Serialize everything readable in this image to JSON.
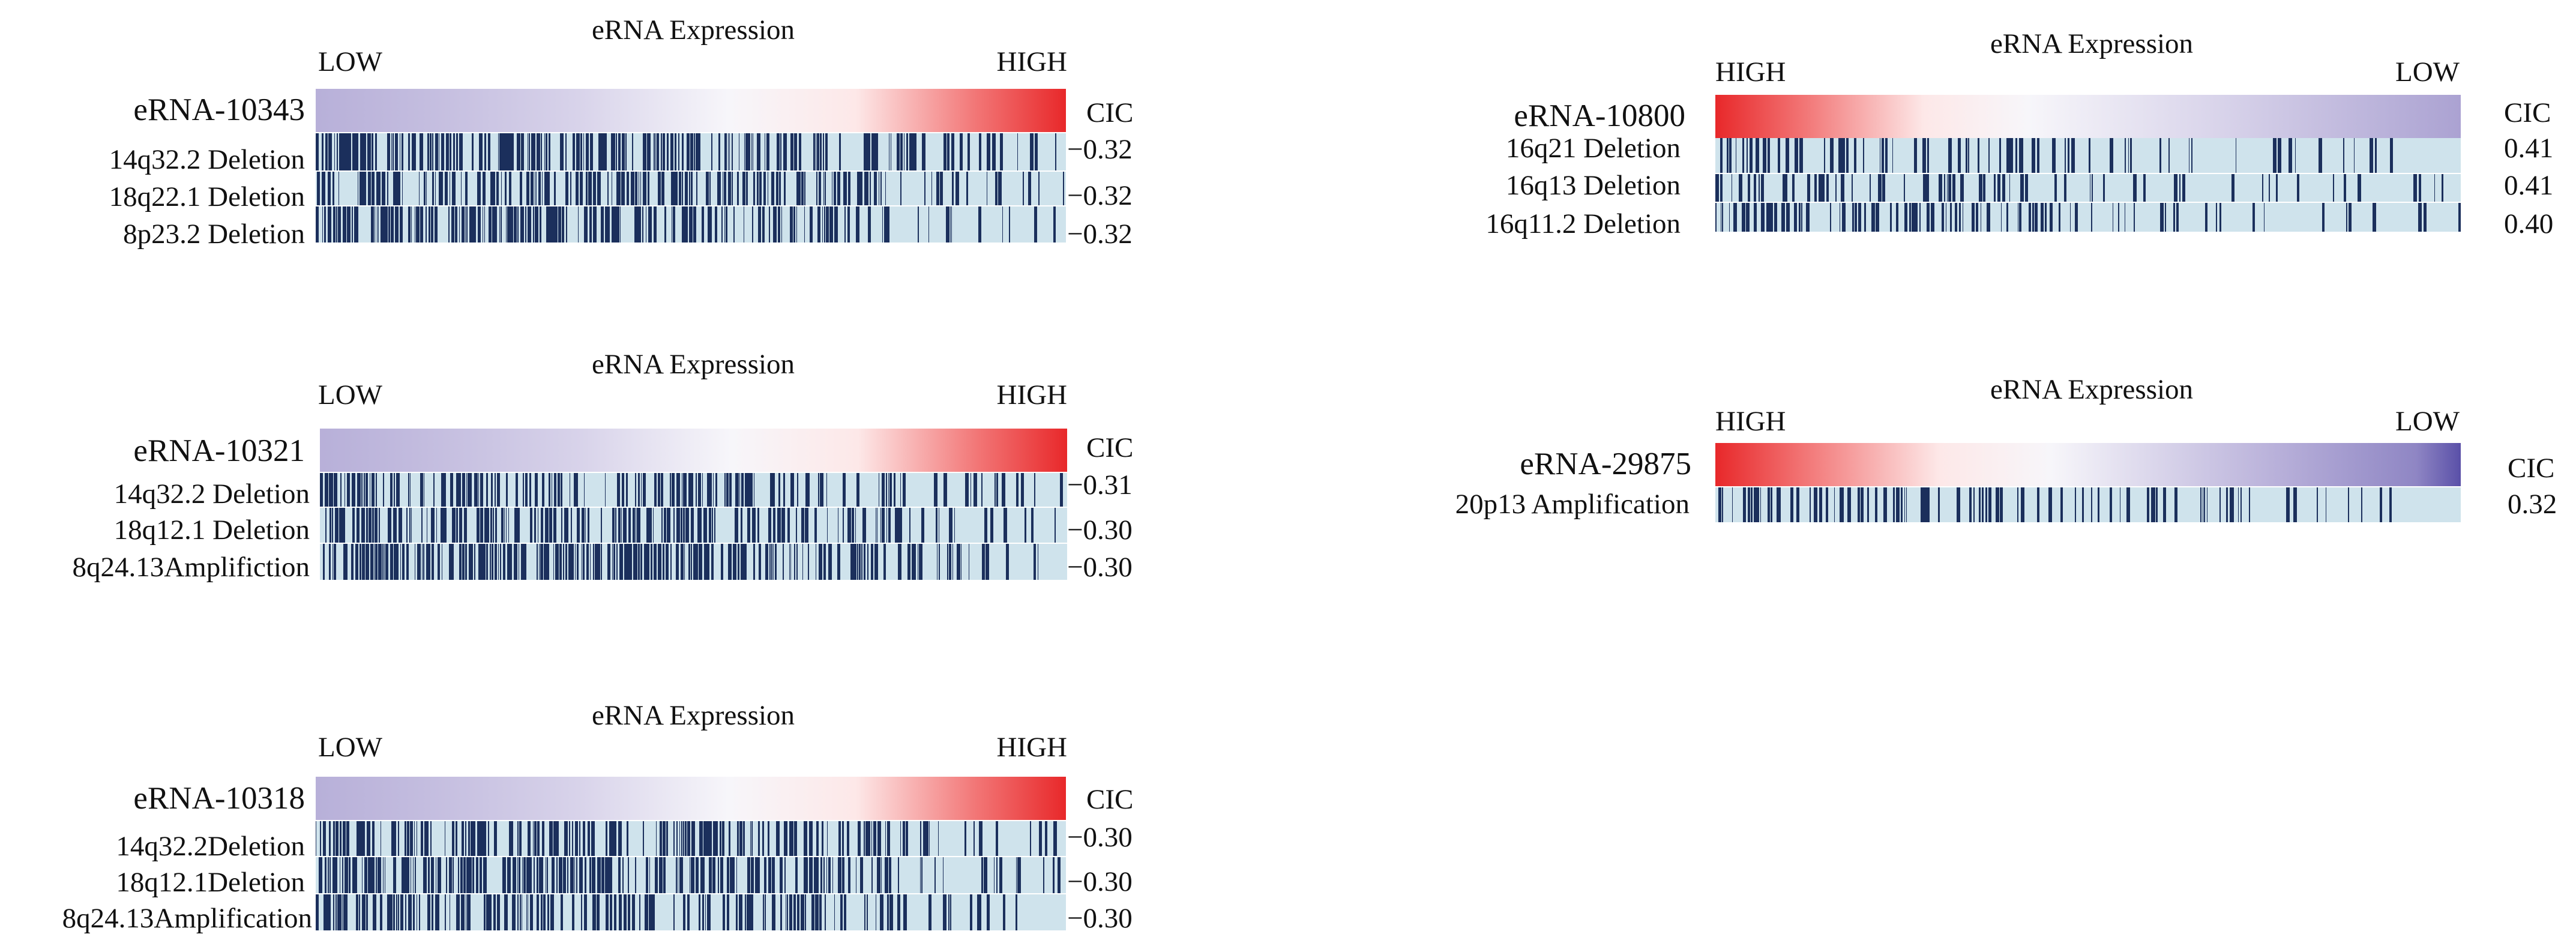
{
  "chart_data": [
    {
      "type": "heatmap",
      "title": "eRNA Expression",
      "low_label": "LOW",
      "high_label": "HIGH",
      "direction": "low-to-high",
      "erna": "eRNA-10343",
      "cic_header": "CIC",
      "rows": [
        {
          "label": "14q32.2 Deletion",
          "cic": "−0.32",
          "density": 0.62
        },
        {
          "label": "18q22.1 Deletion",
          "cic": "−0.32",
          "density": 0.6
        },
        {
          "label": "8p23.2 Deletion",
          "cic": "−0.32",
          "density": 0.66
        }
      ]
    },
    {
      "type": "heatmap",
      "title": "eRNA Expression",
      "low_label": "LOW",
      "high_label": "HIGH",
      "direction": "low-to-high",
      "erna": "eRNA-10321",
      "cic_header": "CIC",
      "rows": [
        {
          "label": "14q32.2 Deletion",
          "cic": "−0.31",
          "density": 0.6
        },
        {
          "label": "18q12.1 Deletion",
          "cic": "−0.30",
          "density": 0.58
        },
        {
          "label": "8q24.13Amplifiction",
          "cic": "−0.30",
          "density": 0.7
        }
      ]
    },
    {
      "type": "heatmap",
      "title": "eRNA Expression",
      "low_label": "LOW",
      "high_label": "HIGH",
      "direction": "low-to-high",
      "erna": "eRNA-10318",
      "cic_header": "CIC",
      "rows": [
        {
          "label": "14q32.2Deletion",
          "cic": "−0.30",
          "density": 0.6
        },
        {
          "label": "18q12.1Deletion",
          "cic": "−0.30",
          "density": 0.66
        },
        {
          "label": "8q24.13Amplification",
          "cic": "−0.30",
          "density": 0.62
        }
      ]
    },
    {
      "type": "heatmap",
      "title": "eRNA Expression",
      "low_label": "LOW",
      "high_label": "HIGH",
      "direction": "high-to-low",
      "erna": "eRNA-10800",
      "cic_header": "CIC",
      "rows": [
        {
          "label": "16q21 Deletion",
          "cic": "0.41",
          "density": 0.55
        },
        {
          "label": "16q13 Deletion",
          "cic": "0.41",
          "density": 0.52
        },
        {
          "label": "16q11.2 Deletion",
          "cic": "0.40",
          "density": 0.58
        }
      ]
    },
    {
      "type": "heatmap",
      "title": "eRNA Expression",
      "low_label": "LOW",
      "high_label": "HIGH",
      "direction": "high-to-low",
      "erna": "eRNA-29875",
      "cic_header": "CIC",
      "rows": [
        {
          "label": "20p13 Amplification",
          "cic": "0.32",
          "density": 0.55
        }
      ]
    }
  ],
  "colors": {
    "low": "#9b92c8",
    "mid": "#f4f2f8",
    "high": "#e8282a",
    "present": "#1b2f5c",
    "absent": "#cfe3ec"
  }
}
